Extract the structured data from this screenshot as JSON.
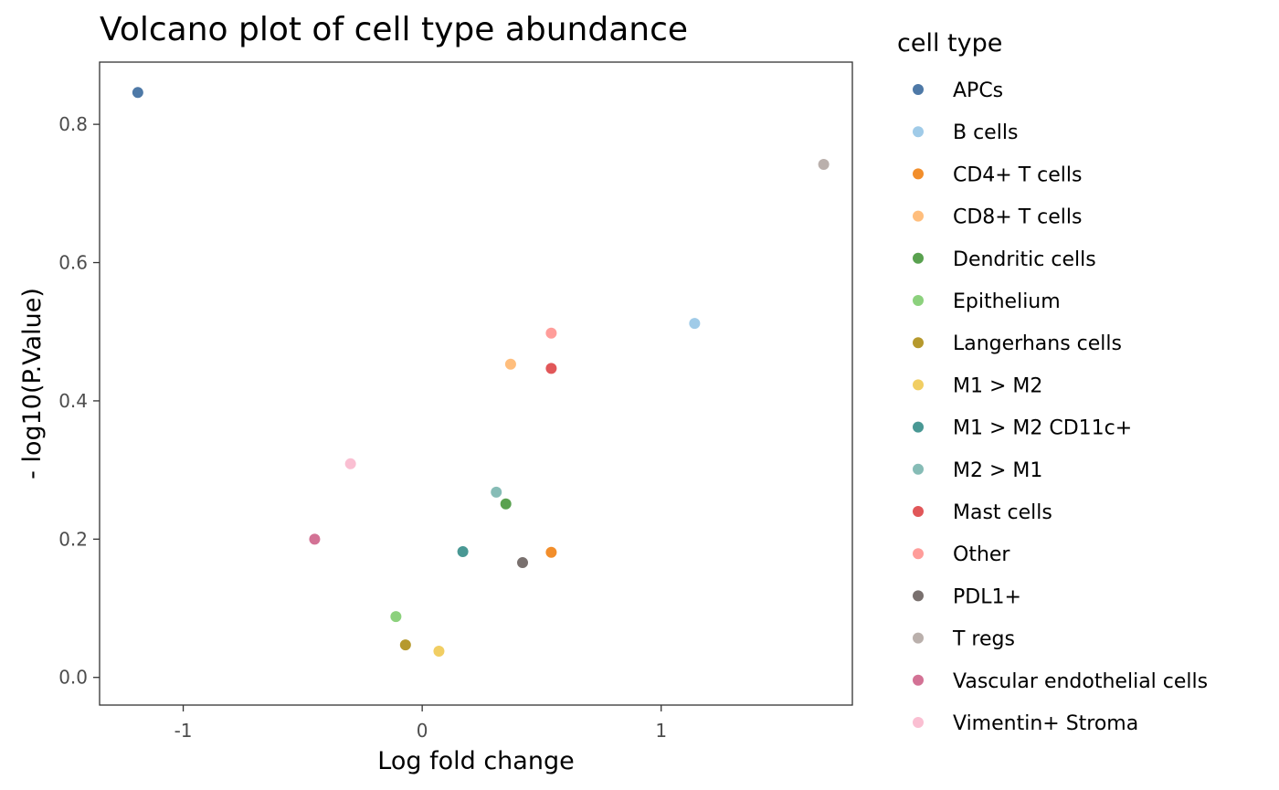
{
  "chart_data": {
    "type": "scatter",
    "title": "Volcano plot of cell type abundance",
    "xlabel": "Log fold change",
    "ylabel": "- log10(P.Value)",
    "xlim": [
      -1.35,
      1.8
    ],
    "ylim": [
      -0.04,
      0.89
    ],
    "x_ticks": [
      -1,
      0,
      1
    ],
    "x_tick_labels": [
      "-1",
      "0",
      "1"
    ],
    "y_ticks": [
      0.0,
      0.2,
      0.4,
      0.6,
      0.8
    ],
    "y_tick_labels": [
      "0.0",
      "0.2",
      "0.4",
      "0.6",
      "0.8"
    ],
    "grid": false,
    "legend_title": "cell type",
    "legend_position": "right",
    "series": [
      {
        "name": "APCs",
        "color": "#4E79A7",
        "x": -1.19,
        "y": 0.846
      },
      {
        "name": "B cells",
        "color": "#A0CBE8",
        "x": 1.14,
        "y": 0.512
      },
      {
        "name": "CD4+ T cells",
        "color": "#F28E2B",
        "x": 0.54,
        "y": 0.181
      },
      {
        "name": "CD8+ T cells",
        "color": "#FFBE7D",
        "x": 0.37,
        "y": 0.453
      },
      {
        "name": "Dendritic cells",
        "color": "#59A14F",
        "x": 0.35,
        "y": 0.251
      },
      {
        "name": "Epithelium",
        "color": "#8CD17D",
        "x": -0.11,
        "y": 0.088
      },
      {
        "name": "Langerhans cells",
        "color": "#B6992D",
        "x": -0.07,
        "y": 0.047
      },
      {
        "name": "M1 > M2",
        "color": "#F1CE63",
        "x": 0.07,
        "y": 0.038
      },
      {
        "name": "M1 > M2 CD11c+",
        "color": "#499894",
        "x": 0.17,
        "y": 0.182
      },
      {
        "name": "M2 > M1",
        "color": "#86BCB6",
        "x": 0.31,
        "y": 0.268
      },
      {
        "name": "Mast cells",
        "color": "#E15759",
        "x": 0.54,
        "y": 0.447
      },
      {
        "name": "Other",
        "color": "#FF9D9A",
        "x": 0.54,
        "y": 0.498
      },
      {
        "name": "PDL1+",
        "color": "#79706E",
        "x": 0.42,
        "y": 0.166
      },
      {
        "name": "T regs",
        "color": "#BAB0AC",
        "x": 1.68,
        "y": 0.742
      },
      {
        "name": "Vascular endothelial cells",
        "color": "#D37295",
        "x": -0.45,
        "y": 0.2
      },
      {
        "name": "Vimentin+ Stroma",
        "color": "#FABFD2",
        "x": -0.3,
        "y": 0.309
      }
    ]
  }
}
